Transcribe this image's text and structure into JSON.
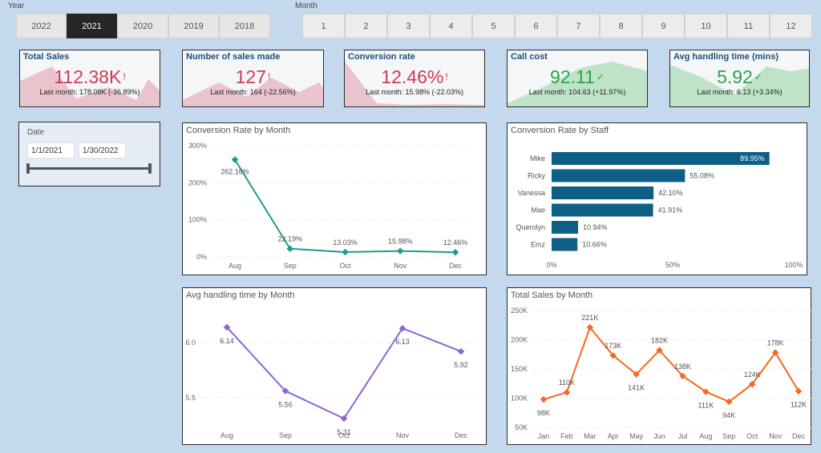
{
  "year_slicer": {
    "title": "Year",
    "options": [
      "2022",
      "2021",
      "2020",
      "2019",
      "2018"
    ],
    "selected": "2021"
  },
  "month_slicer": {
    "title": "Month",
    "options": [
      "1",
      "2",
      "3",
      "4",
      "5",
      "6",
      "7",
      "8",
      "9",
      "10",
      "11",
      "12"
    ]
  },
  "kpis": [
    {
      "title": "Total Sales",
      "value": "112.38K",
      "flag": "!",
      "status": "bad",
      "last": "Last month: 178.08K (-36.89%)"
    },
    {
      "title": "Number of sales made",
      "value": "127",
      "flag": "!",
      "status": "bad",
      "last": "Last month: 164 (-22.56%)"
    },
    {
      "title": "Conversion rate",
      "value": "12.46%",
      "flag": "!",
      "status": "bad",
      "last": "Last month: 15.98% (-22.03%)"
    },
    {
      "title": "Call cost",
      "value": "92.11",
      "flag": "✓",
      "status": "good",
      "last": "Last month: 104.63 (+11.97%)"
    },
    {
      "title": "Avg handling time (mins)",
      "value": "5.92",
      "flag": "✓",
      "status": "good",
      "last": "Last month: 6.13 (+3.34%)"
    }
  ],
  "date_slicer": {
    "label": "Date",
    "start": "1/1/2021",
    "end": "1/30/2022"
  },
  "colors": {
    "bad": "#d33a54",
    "bad_fill": "#e9c4cc",
    "good": "#2aa44a",
    "good_fill": "#bfe3c9",
    "teal": "#1f9b8c",
    "bar": "#0e5e86",
    "purple": "#8a67d2",
    "orange": "#f26a21"
  },
  "chart_data": [
    {
      "id": "conv_month",
      "title": "Conversion Rate by Month",
      "type": "line",
      "categories": [
        "Aug",
        "Sep",
        "Oct",
        "Nov",
        "Dec"
      ],
      "values": [
        262.16,
        22.19,
        13.03,
        15.98,
        12.46
      ],
      "labels": [
        "262.16%",
        "22.19%",
        "13.03%",
        "15.98%",
        "12.46%"
      ],
      "yticks": [
        "0%",
        "100%",
        "200%",
        "300%"
      ],
      "ylim": [
        0,
        300
      ]
    },
    {
      "id": "conv_staff",
      "title": "Conversion Rate by Staff",
      "type": "bar",
      "orientation": "horizontal",
      "categories": [
        "Mike",
        "Ricky",
        "Vanessa",
        "Mae",
        "Querolyn",
        "Emz"
      ],
      "values": [
        89.95,
        55.08,
        42.1,
        41.91,
        10.94,
        10.66
      ],
      "labels": [
        "89.95%",
        "55.08%",
        "42.10%",
        "41.91%",
        "10.94%",
        "10.66%"
      ],
      "xticks": [
        "0%",
        "50%",
        "100%"
      ],
      "xlim": [
        0,
        100
      ]
    },
    {
      "id": "aht_month",
      "title": "Avg handling time by Month",
      "type": "line",
      "categories": [
        "Aug",
        "Sep",
        "Oct",
        "Nov",
        "Dec"
      ],
      "values": [
        6.14,
        5.56,
        5.31,
        6.13,
        5.92
      ],
      "labels": [
        "6.14",
        "5.56",
        "5.31",
        "6.13",
        "5.92"
      ],
      "yticks": [
        "5.5",
        "6.0"
      ],
      "ylim": [
        5.2,
        6.35
      ]
    },
    {
      "id": "sales_month",
      "title": "Total Sales by Month",
      "type": "line",
      "categories": [
        "Jan",
        "Feb",
        "Mar",
        "Apr",
        "May",
        "Jun",
        "Jul",
        "Aug",
        "Sep",
        "Oct",
        "Nov",
        "Dec"
      ],
      "values": [
        98,
        110,
        221,
        173,
        141,
        182,
        138,
        111,
        94,
        124,
        178,
        112
      ],
      "labels": [
        "98K",
        "110K",
        "221K",
        "173K",
        "141K",
        "182K",
        "138K",
        "111K",
        "94K",
        "124K",
        "178K",
        "112K"
      ],
      "yticks": [
        "50K",
        "100K",
        "150K",
        "200K",
        "250K"
      ],
      "ylim": [
        50,
        250
      ]
    }
  ]
}
